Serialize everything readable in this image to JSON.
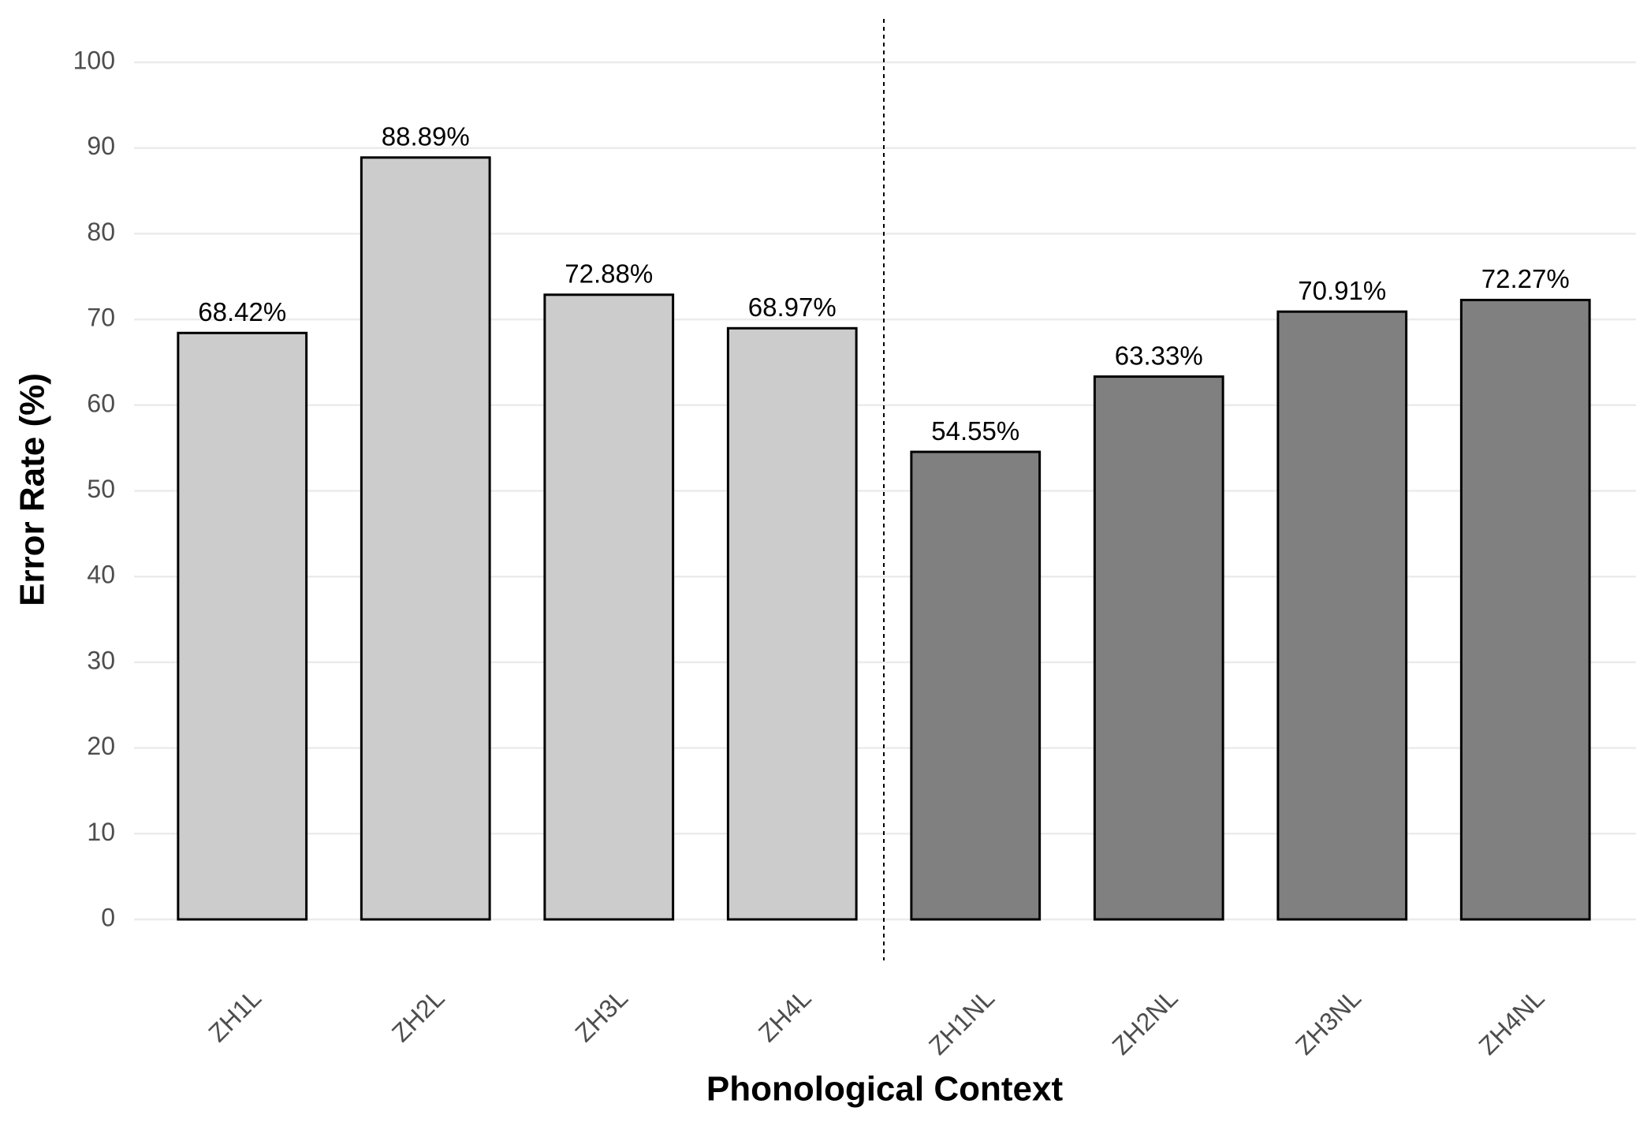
{
  "chart_data": {
    "type": "bar",
    "x_label": "Phonological Context",
    "y_label": "Error Rate (%)",
    "categories": [
      "ZH1L",
      "ZH2L",
      "ZH3L",
      "ZH4L",
      "ZH1NL",
      "ZH2NL",
      "ZH3NL",
      "ZH4NL"
    ],
    "values": [
      68.42,
      88.89,
      72.88,
      68.97,
      54.55,
      63.33,
      70.91,
      72.27
    ],
    "value_labels": [
      "68.42%",
      "88.89%",
      "72.88%",
      "68.97%",
      "54.55%",
      "63.33%",
      "70.91%",
      "72.27%"
    ],
    "colors": [
      "#cccccc",
      "#cccccc",
      "#cccccc",
      "#cccccc",
      "#808080",
      "#808080",
      "#808080",
      "#808080"
    ],
    "ylim": [
      0,
      100
    ],
    "yticks": [
      0,
      10,
      20,
      30,
      40,
      50,
      60,
      70,
      80,
      90,
      100
    ],
    "grid": true
  }
}
